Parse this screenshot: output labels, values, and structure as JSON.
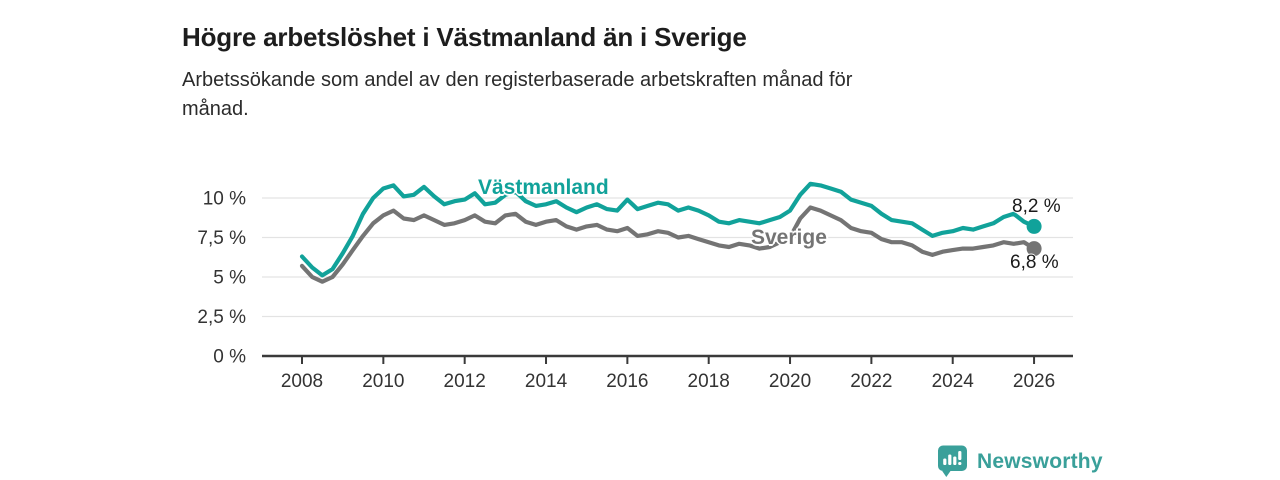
{
  "header": {
    "title": "Högre arbetslöshet i Västmanland än i Sverige",
    "subtitle_line1": "Arbetssökande som andel av den registerbaserade arbetskraften månad för",
    "subtitle_line2": "månad."
  },
  "chart_data": {
    "type": "line",
    "title": "Högre arbetslöshet i Västmanland än i Sverige",
    "subtitle": "Arbetssökande som andel av den registerbaserade arbetskraften månad för månad.",
    "xlabel": "",
    "ylabel": "",
    "unit": "%",
    "xlim": [
      2007.1,
      2026.9
    ],
    "ylim": [
      0,
      11.5
    ],
    "grid": "horizontal",
    "legend_position": "inline-labels",
    "y_ticks": [
      {
        "value": 0,
        "label": "0 %"
      },
      {
        "value": 2.5,
        "label": "2,5 %"
      },
      {
        "value": 5,
        "label": "5 %"
      },
      {
        "value": 7.5,
        "label": "7,5 %"
      },
      {
        "value": 10,
        "label": "10 %"
      }
    ],
    "x_ticks": [
      {
        "value": 2008,
        "label": "2008"
      },
      {
        "value": 2010,
        "label": "2010"
      },
      {
        "value": 2012,
        "label": "2012"
      },
      {
        "value": 2014,
        "label": "2014"
      },
      {
        "value": 2016,
        "label": "2016"
      },
      {
        "value": 2018,
        "label": "2018"
      },
      {
        "value": 2020,
        "label": "2020"
      },
      {
        "value": 2022,
        "label": "2022"
      },
      {
        "value": 2024,
        "label": "2024"
      },
      {
        "value": 2026,
        "label": "2026"
      }
    ],
    "series": [
      {
        "name": "Västmanland",
        "color": "#11a29a",
        "end_value": 8.2,
        "end_label": "8,2 %",
        "points": [
          [
            2008.0,
            6.3
          ],
          [
            2008.25,
            5.6
          ],
          [
            2008.5,
            5.1
          ],
          [
            2008.75,
            5.5
          ],
          [
            2009.0,
            6.5
          ],
          [
            2009.25,
            7.6
          ],
          [
            2009.5,
            9.0
          ],
          [
            2009.75,
            10.0
          ],
          [
            2010.0,
            10.6
          ],
          [
            2010.25,
            10.8
          ],
          [
            2010.5,
            10.1
          ],
          [
            2010.75,
            10.2
          ],
          [
            2011.0,
            10.7
          ],
          [
            2011.25,
            10.1
          ],
          [
            2011.5,
            9.6
          ],
          [
            2011.75,
            9.8
          ],
          [
            2012.0,
            9.9
          ],
          [
            2012.25,
            10.3
          ],
          [
            2012.5,
            9.6
          ],
          [
            2012.75,
            9.7
          ],
          [
            2013.0,
            10.2
          ],
          [
            2013.25,
            10.4
          ],
          [
            2013.5,
            9.8
          ],
          [
            2013.75,
            9.5
          ],
          [
            2014.0,
            9.6
          ],
          [
            2014.25,
            9.8
          ],
          [
            2014.5,
            9.4
          ],
          [
            2014.75,
            9.1
          ],
          [
            2015.0,
            9.4
          ],
          [
            2015.25,
            9.6
          ],
          [
            2015.5,
            9.3
          ],
          [
            2015.75,
            9.2
          ],
          [
            2016.0,
            9.9
          ],
          [
            2016.25,
            9.3
          ],
          [
            2016.5,
            9.5
          ],
          [
            2016.75,
            9.7
          ],
          [
            2017.0,
            9.6
          ],
          [
            2017.25,
            9.2
          ],
          [
            2017.5,
            9.4
          ],
          [
            2017.75,
            9.2
          ],
          [
            2018.0,
            8.9
          ],
          [
            2018.25,
            8.5
          ],
          [
            2018.5,
            8.4
          ],
          [
            2018.75,
            8.6
          ],
          [
            2019.0,
            8.5
          ],
          [
            2019.25,
            8.4
          ],
          [
            2019.5,
            8.6
          ],
          [
            2019.75,
            8.8
          ],
          [
            2020.0,
            9.2
          ],
          [
            2020.25,
            10.2
          ],
          [
            2020.5,
            10.9
          ],
          [
            2020.75,
            10.8
          ],
          [
            2021.0,
            10.6
          ],
          [
            2021.25,
            10.4
          ],
          [
            2021.5,
            9.9
          ],
          [
            2021.75,
            9.7
          ],
          [
            2022.0,
            9.5
          ],
          [
            2022.25,
            9.0
          ],
          [
            2022.5,
            8.6
          ],
          [
            2022.75,
            8.5
          ],
          [
            2023.0,
            8.4
          ],
          [
            2023.25,
            8.0
          ],
          [
            2023.5,
            7.6
          ],
          [
            2023.75,
            7.8
          ],
          [
            2024.0,
            7.9
          ],
          [
            2024.25,
            8.1
          ],
          [
            2024.5,
            8.0
          ],
          [
            2024.75,
            8.2
          ],
          [
            2025.0,
            8.4
          ],
          [
            2025.25,
            8.8
          ],
          [
            2025.5,
            9.0
          ],
          [
            2025.75,
            8.5
          ],
          [
            2026.0,
            8.2
          ]
        ]
      },
      {
        "name": "Sverige",
        "color": "#747474",
        "end_value": 6.8,
        "end_label": "6,8 %",
        "points": [
          [
            2008.0,
            5.7
          ],
          [
            2008.25,
            5.0
          ],
          [
            2008.5,
            4.7
          ],
          [
            2008.75,
            5.0
          ],
          [
            2009.0,
            5.8
          ],
          [
            2009.25,
            6.7
          ],
          [
            2009.5,
            7.6
          ],
          [
            2009.75,
            8.4
          ],
          [
            2010.0,
            8.9
          ],
          [
            2010.25,
            9.2
          ],
          [
            2010.5,
            8.7
          ],
          [
            2010.75,
            8.6
          ],
          [
            2011.0,
            8.9
          ],
          [
            2011.25,
            8.6
          ],
          [
            2011.5,
            8.3
          ],
          [
            2011.75,
            8.4
          ],
          [
            2012.0,
            8.6
          ],
          [
            2012.25,
            8.9
          ],
          [
            2012.5,
            8.5
          ],
          [
            2012.75,
            8.4
          ],
          [
            2013.0,
            8.9
          ],
          [
            2013.25,
            9.0
          ],
          [
            2013.5,
            8.5
          ],
          [
            2013.75,
            8.3
          ],
          [
            2014.0,
            8.5
          ],
          [
            2014.25,
            8.6
          ],
          [
            2014.5,
            8.2
          ],
          [
            2014.75,
            8.0
          ],
          [
            2015.0,
            8.2
          ],
          [
            2015.25,
            8.3
          ],
          [
            2015.5,
            8.0
          ],
          [
            2015.75,
            7.9
          ],
          [
            2016.0,
            8.1
          ],
          [
            2016.25,
            7.6
          ],
          [
            2016.5,
            7.7
          ],
          [
            2016.75,
            7.9
          ],
          [
            2017.0,
            7.8
          ],
          [
            2017.25,
            7.5
          ],
          [
            2017.5,
            7.6
          ],
          [
            2017.75,
            7.4
          ],
          [
            2018.0,
            7.2
          ],
          [
            2018.25,
            7.0
          ],
          [
            2018.5,
            6.9
          ],
          [
            2018.75,
            7.1
          ],
          [
            2019.0,
            7.0
          ],
          [
            2019.25,
            6.8
          ],
          [
            2019.5,
            6.9
          ],
          [
            2019.75,
            7.2
          ],
          [
            2020.0,
            7.5
          ],
          [
            2020.25,
            8.7
          ],
          [
            2020.5,
            9.4
          ],
          [
            2020.75,
            9.2
          ],
          [
            2021.0,
            8.9
          ],
          [
            2021.25,
            8.6
          ],
          [
            2021.5,
            8.1
          ],
          [
            2021.75,
            7.9
          ],
          [
            2022.0,
            7.8
          ],
          [
            2022.25,
            7.4
          ],
          [
            2022.5,
            7.2
          ],
          [
            2022.75,
            7.2
          ],
          [
            2023.0,
            7.0
          ],
          [
            2023.25,
            6.6
          ],
          [
            2023.5,
            6.4
          ],
          [
            2023.75,
            6.6
          ],
          [
            2024.0,
            6.7
          ],
          [
            2024.25,
            6.8
          ],
          [
            2024.5,
            6.8
          ],
          [
            2024.75,
            6.9
          ],
          [
            2025.0,
            7.0
          ],
          [
            2025.25,
            7.2
          ],
          [
            2025.5,
            7.1
          ],
          [
            2025.75,
            7.2
          ],
          [
            2026.0,
            6.8
          ]
        ]
      }
    ]
  },
  "branding": {
    "logo_text": "Newsworthy",
    "logo_icon": "bar-chart-speech-bubble-icon",
    "logo_color": "#3aa09a"
  },
  "colors": {
    "vastmanland": "#11a29a",
    "sverige": "#747474",
    "axis": "#3a3a3a",
    "gridline": "#e3e3e3",
    "text": "#1d1d1d"
  }
}
